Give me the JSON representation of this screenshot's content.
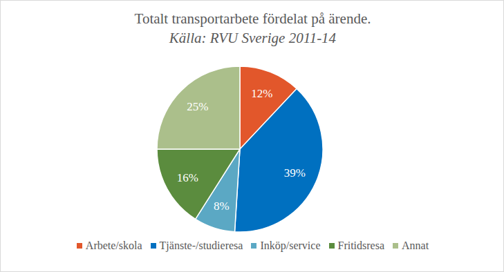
{
  "chart_data": {
    "type": "pie",
    "title": "Totalt transportarbete fördelat på ärende.",
    "subtitle": "Källa: RVU Sverige 2011-14",
    "categories": [
      "Arbete/skola",
      "Tjänste-/studieresa",
      "Inköp/service",
      "Fritidsresa",
      "Annat"
    ],
    "values": [
      12,
      39,
      8,
      16,
      25
    ],
    "value_labels": [
      "12%",
      "39%",
      "8%",
      "16%",
      "25%"
    ],
    "colors": [
      "#e2572b",
      "#0070c0",
      "#5ba8c4",
      "#5b8c3e",
      "#abbf8b"
    ],
    "data_labels": true,
    "legend": "bottom"
  }
}
